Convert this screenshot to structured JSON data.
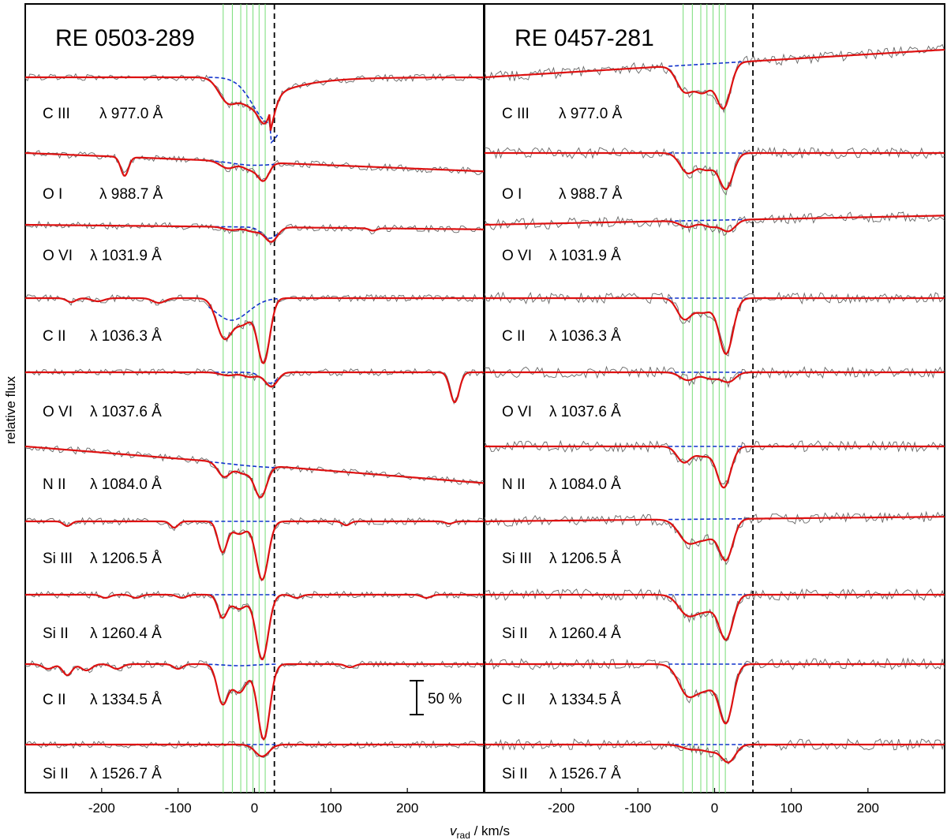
{
  "figure": {
    "ylabel": "relative flux",
    "xlabel_main": "v",
    "xlabel_sub": "rad",
    "xlabel_unit": " / km/s",
    "scalebar_label": "50 %",
    "colors": {
      "model": "#dd1111",
      "observed": "#666666",
      "interstellar": "#1133cc",
      "components": "#77dd77",
      "reference": "#000000"
    }
  },
  "chart_data": [
    {
      "type": "line",
      "title": "RE 0503-289",
      "xlim": [
        -300,
        300
      ],
      "xticks": [
        -200,
        -100,
        0,
        100,
        200
      ],
      "component_velocities": [
        -41,
        -29,
        -18,
        -10,
        -2,
        6,
        14
      ],
      "reference_velocity": 26,
      "series": [
        {
          "ion": "C III",
          "wavelength": "λ 977.0 Å"
        },
        {
          "ion": "O I",
          "wavelength": "λ 988.7 Å"
        },
        {
          "ion": "O VI",
          "wavelength": "λ 1031.9 Å"
        },
        {
          "ion": "C II",
          "wavelength": "λ 1036.3 Å"
        },
        {
          "ion": "O VI",
          "wavelength": "λ 1037.6 Å"
        },
        {
          "ion": "N II",
          "wavelength": "λ 1084.0 Å"
        },
        {
          "ion": "Si III",
          "wavelength": "λ 1206.5 Å"
        },
        {
          "ion": "Si II",
          "wavelength": "λ 1260.4 Å"
        },
        {
          "ion": "C II",
          "wavelength": "λ 1334.5 Å"
        },
        {
          "ion": "Si II",
          "wavelength": "λ 1526.7 Å"
        }
      ]
    },
    {
      "type": "line",
      "title": "RE 0457-281",
      "xlim": [
        -300,
        300
      ],
      "xticks": [
        -200,
        -100,
        0,
        100,
        200
      ],
      "component_velocities": [
        -41,
        -29,
        -18,
        -10,
        -2,
        6,
        14
      ],
      "reference_velocity": 50,
      "series": [
        {
          "ion": "C III",
          "wavelength": "λ 977.0 Å"
        },
        {
          "ion": "O I",
          "wavelength": "λ 988.7 Å"
        },
        {
          "ion": "O VI",
          "wavelength": "λ 1031.9 Å"
        },
        {
          "ion": "C II",
          "wavelength": "λ 1036.3 Å"
        },
        {
          "ion": "O VI",
          "wavelength": "λ 1037.6 Å"
        },
        {
          "ion": "N II",
          "wavelength": "λ 1084.0 Å"
        },
        {
          "ion": "Si III",
          "wavelength": "λ 1206.5 Å"
        },
        {
          "ion": "Si II",
          "wavelength": "λ 1260.4 Å"
        },
        {
          "ion": "C II",
          "wavelength": "λ 1334.5 Å"
        },
        {
          "ion": "Si II",
          "wavelength": "λ 1526.7 Å"
        }
      ]
    }
  ]
}
